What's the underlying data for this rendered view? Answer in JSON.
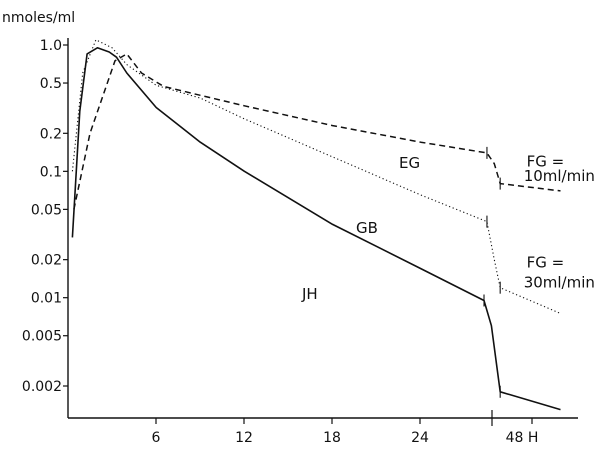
{
  "chart_data": {
    "type": "line",
    "title": "",
    "ylabel": "nmoles/ml",
    "xlabel": "",
    "y_scale": "log",
    "ylim": [
      0.0015,
      1.1
    ],
    "xlim": [
      0,
      56
    ],
    "x_ticks": [
      {
        "value": 6,
        "label": "6"
      },
      {
        "value": 12,
        "label": "12"
      },
      {
        "value": 18,
        "label": "18"
      },
      {
        "value": 24,
        "label": "24"
      },
      {
        "value": 48,
        "label": "48 H"
      }
    ],
    "x_axis_break_after": 30,
    "y_ticks": [
      {
        "value": 1.0,
        "label": "1.0"
      },
      {
        "value": 0.5,
        "label": "0.5"
      },
      {
        "value": 0.2,
        "label": "0.2"
      },
      {
        "value": 0.1,
        "label": "0.1"
      },
      {
        "value": 0.05,
        "label": "0.05"
      },
      {
        "value": 0.02,
        "label": "0.02"
      },
      {
        "value": 0.01,
        "label": "0.01"
      },
      {
        "value": 0.005,
        "label": "0.005"
      },
      {
        "value": 0.002,
        "label": "0.002"
      }
    ],
    "series": [
      {
        "name": "EG",
        "style": "dashed",
        "x": [
          0.4,
          1.5,
          3.2,
          4.0,
          5.0,
          6.5,
          9.0,
          12,
          18,
          24,
          28.5,
          29.0,
          29.4,
          33.5
        ],
        "y": [
          0.05,
          0.2,
          0.75,
          0.85,
          0.6,
          0.47,
          0.4,
          0.33,
          0.23,
          0.17,
          0.14,
          0.115,
          0.08,
          0.07
        ]
      },
      {
        "name": "GB",
        "style": "dotted",
        "x": [
          0.3,
          1.0,
          1.9,
          3.0,
          4.0,
          6.0,
          9.0,
          12,
          18,
          24,
          28.5,
          29.0,
          29.4,
          33.5
        ],
        "y": [
          0.1,
          0.6,
          1.1,
          0.95,
          0.7,
          0.48,
          0.38,
          0.26,
          0.13,
          0.065,
          0.04,
          0.02,
          0.012,
          0.0075
        ]
      },
      {
        "name": "JH",
        "style": "solid",
        "x": [
          0.3,
          0.8,
          1.3,
          2.0,
          2.8,
          3.3,
          4.0,
          6.0,
          9.0,
          12,
          18,
          24,
          28.3,
          28.8,
          29.4,
          33.5
        ],
        "y": [
          0.03,
          0.3,
          0.85,
          0.95,
          0.88,
          0.8,
          0.6,
          0.32,
          0.17,
          0.1,
          0.038,
          0.017,
          0.0095,
          0.006,
          0.0018,
          0.0013
        ]
      }
    ],
    "annotations": [
      {
        "text": "FG =",
        "x": 31.2,
        "y": 0.12
      },
      {
        "text": "10ml/min",
        "x": 31.0,
        "y": 0.092
      },
      {
        "text": "FG =",
        "x": 31.2,
        "y": 0.019
      },
      {
        "text": "30ml/min",
        "x": 31.0,
        "y": 0.0132
      }
    ]
  }
}
